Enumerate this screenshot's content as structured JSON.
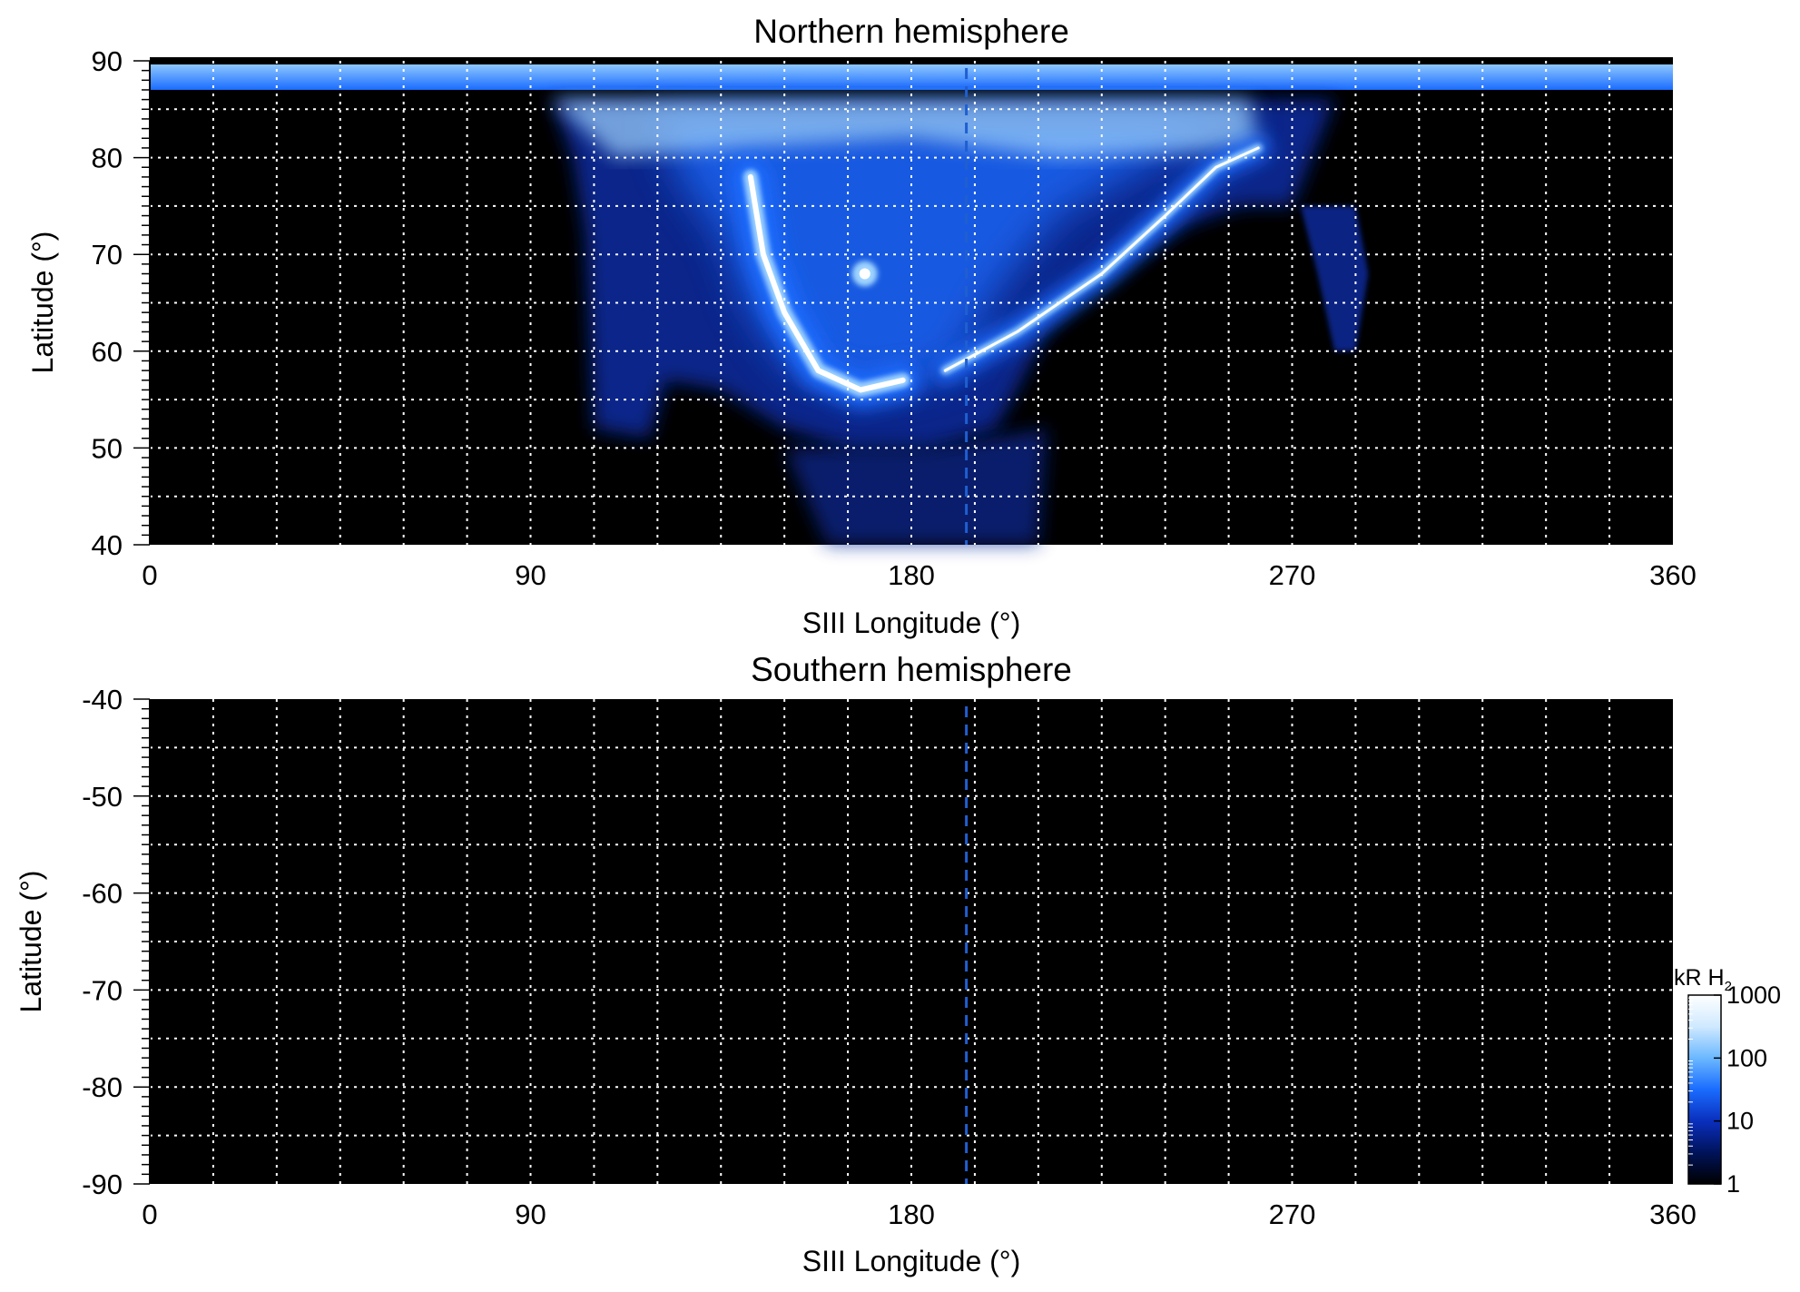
{
  "colors": {
    "background": "#000000",
    "grid": "#ffffff",
    "reference_line": "#1f5fd0",
    "aurora_low": "#0a2a9a",
    "aurora_mid": "#1a6cff",
    "aurora_high": "#9fd4ff",
    "aurora_peak": "#ffffff"
  },
  "chart_data": [
    {
      "type": "heatmap",
      "title": "Northern hemisphere",
      "xlabel": "SIII Longitude (°)",
      "ylabel": "Latitude (°)",
      "xlim": [
        0,
        360
      ],
      "ylim": [
        40,
        90
      ],
      "x_ticks": [
        0,
        90,
        180,
        270,
        360
      ],
      "y_ticks": [
        40,
        50,
        60,
        70,
        80,
        90
      ],
      "grid": true,
      "grid_x_step": 15,
      "grid_y_step": 5,
      "reference_line_longitude": 193,
      "colorscale": "log",
      "colorbar_range": [
        1,
        1000
      ],
      "features": [
        {
          "type": "polar-cap-band",
          "lat_range": [
            87,
            90
          ],
          "lon_range": [
            0,
            360
          ]
        },
        {
          "type": "main-oval-dusk-arc",
          "path": [
            [
              142,
              78
            ],
            [
              145,
              70
            ],
            [
              150,
              64
            ],
            [
              158,
              58
            ],
            [
              168,
              56
            ],
            [
              178,
              57
            ]
          ]
        },
        {
          "type": "main-oval-dawn-arc",
          "path": [
            [
              188,
              58
            ],
            [
              205,
              62
            ],
            [
              225,
              68
            ],
            [
              240,
              74
            ],
            [
              252,
              79
            ],
            [
              262,
              81
            ]
          ]
        },
        {
          "type": "bright-spot",
          "lon": 169,
          "lat": 68
        },
        {
          "type": "diffuse-emission-region",
          "lon_range": [
            95,
            260
          ],
          "lat_range": [
            50,
            86
          ]
        }
      ]
    },
    {
      "type": "heatmap",
      "title": "Southern hemisphere",
      "xlabel": "SIII Longitude (°)",
      "ylabel": "Latitude (°)",
      "xlim": [
        0,
        360
      ],
      "ylim": [
        -90,
        -40
      ],
      "x_ticks": [
        0,
        90,
        180,
        270,
        360
      ],
      "y_ticks": [
        -40,
        -50,
        -60,
        -70,
        -80,
        -90
      ],
      "grid": true,
      "grid_x_step": 15,
      "grid_y_step": 5,
      "reference_line_longitude": 193,
      "colorscale": "log",
      "colorbar_range": [
        1,
        1000
      ],
      "features": []
    }
  ],
  "colorbar": {
    "label_main": "kR H",
    "label_sub": "2",
    "ticks": [
      {
        "value": 1,
        "label": "1"
      },
      {
        "value": 10,
        "label": "10"
      },
      {
        "value": 100,
        "label": "100"
      },
      {
        "value": 1000,
        "label": "1000"
      }
    ],
    "stops": [
      "#000000",
      "#00135a",
      "#0a2fbd",
      "#1a6cff",
      "#6bb8ff",
      "#cfe9ff",
      "#ffffff"
    ]
  }
}
